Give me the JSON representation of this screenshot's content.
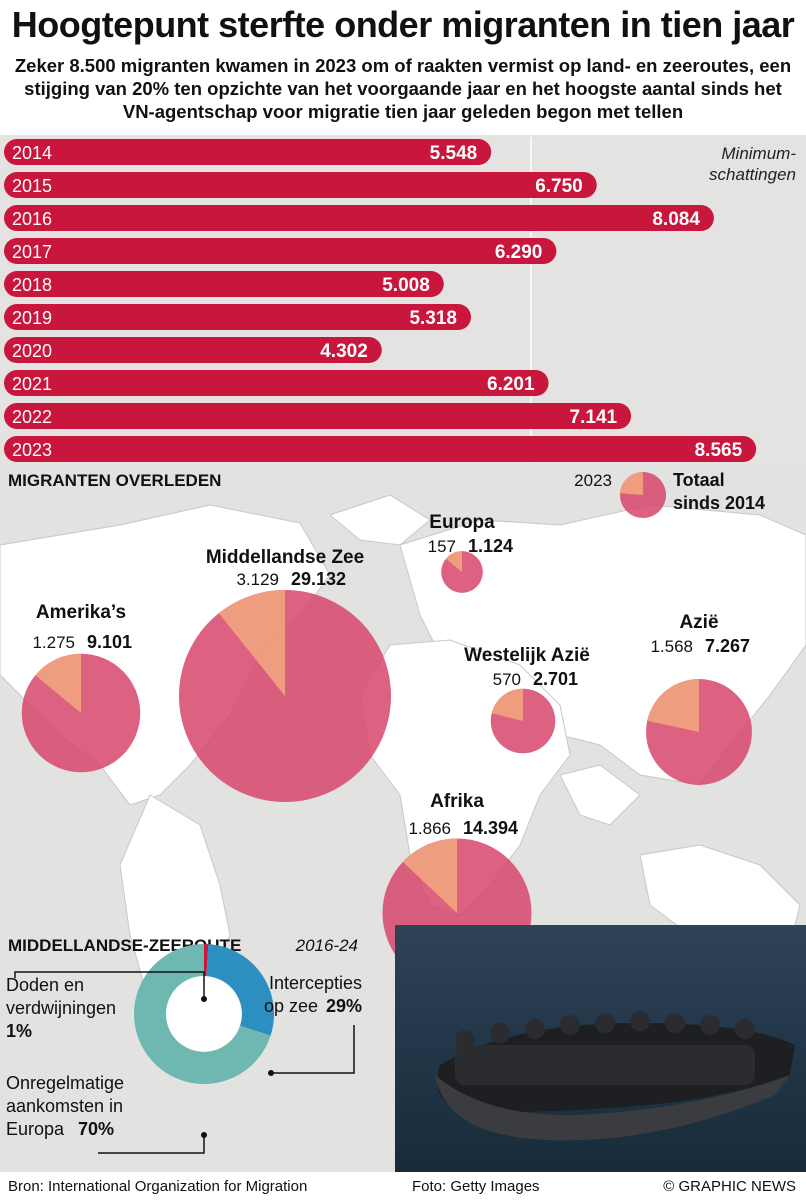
{
  "header": {
    "title": "Hoogtepunt sterfte onder migranten in tien jaar",
    "subtitle": "Zeker 8.500 migranten kwamen in 2023 om of raakten vermist op land- en zeeroutes, een stijging van 20% ten opzichte van het voorgaande jaar en het hoogste aantal sinds het VN-agentschap voor migratie tien jaar geleden begon met tellen"
  },
  "chart_data": [
    {
      "type": "bar",
      "orientation": "horizontal",
      "categories": [
        "2014",
        "2015",
        "2016",
        "2017",
        "2018",
        "2019",
        "2020",
        "2021",
        "2022",
        "2023"
      ],
      "values": [
        5548,
        6750,
        8084,
        6290,
        5008,
        5318,
        4302,
        6201,
        7141,
        8565
      ],
      "value_labels": [
        "5.548",
        "6.750",
        "8.084",
        "6.290",
        "5.008",
        "5.318",
        "4.302",
        "6.201",
        "7.141",
        "8.565"
      ],
      "note_line1": "Minimum-",
      "note_line2": "schattingen",
      "xlim": [
        0,
        8700
      ],
      "reference_line": 6000,
      "color": "#c8163d"
    },
    {
      "type": "pie",
      "title": "MIGRANTEN OVERLEDEN",
      "legend": {
        "year_label": "2023",
        "total_line1": "Totaal",
        "total_line2": "sinds 2014"
      },
      "regions": [
        {
          "name": "Middellandse Zee",
          "value_2023": 3129,
          "label_2023": "3.129",
          "total": 29132,
          "label_total": "29.132"
        },
        {
          "name": "Amerika’s",
          "value_2023": 1275,
          "label_2023": "1.275",
          "total": 9101,
          "label_total": "9.101"
        },
        {
          "name": "Europa",
          "value_2023": 157,
          "label_2023": "157",
          "total": 1124,
          "label_total": "1.124"
        },
        {
          "name": "Westelijk Azië",
          "value_2023": 570,
          "label_2023": "570",
          "total": 2701,
          "label_total": "2.701"
        },
        {
          "name": "Azië",
          "value_2023": 1568,
          "label_2023": "1.568",
          "total": 7267,
          "label_total": "7.267"
        },
        {
          "name": "Afrika",
          "value_2023": 1866,
          "label_2023": "1.866",
          "total": 14394,
          "label_total": "14.394"
        }
      ],
      "colors": {
        "total": "#d7476b",
        "year": "#efa07e"
      }
    },
    {
      "type": "pie",
      "style": "donut",
      "title": "MIDDELLANDSE-ZEEROUTE",
      "period": "2016-24",
      "slices": [
        {
          "name": "Doden en verdwijningen",
          "value": 1,
          "label": "1%",
          "color": "#c8163d"
        },
        {
          "name": "Intercepties op zee",
          "value": 29,
          "label": "29%",
          "color": "#2d8fbf"
        },
        {
          "name": "Onregelmatige aankomsten in Europa",
          "value": 70,
          "label": "70%",
          "color": "#6fb8b1"
        }
      ],
      "labels": {
        "deaths_line1": "Doden en",
        "deaths_line2": "verdwijningen",
        "deaths_pct": "1%",
        "intercept_line1": "Intercepties",
        "intercept_line2": "op zee ",
        "intercept_pct": "29%",
        "arrivals_line1": "Onregelmatige",
        "arrivals_line2": "aankomsten in",
        "arrivals_line3": "Europa ",
        "arrivals_pct": "70%"
      }
    }
  ],
  "footer": {
    "source": "Bron: International Organization for Migration",
    "photo": "Foto: Getty Images",
    "credit": "© GRAPHIC NEWS"
  }
}
